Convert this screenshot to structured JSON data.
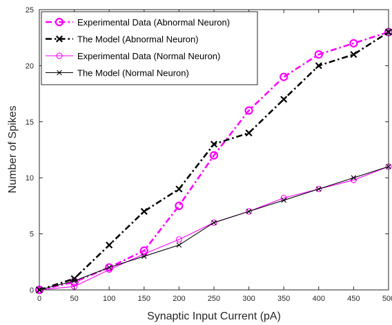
{
  "chart_data": {
    "type": "line",
    "xlabel": "Synaptic Input Current (pA)",
    "ylabel": "Number of Spikes",
    "xlim": [
      0,
      500
    ],
    "ylim": [
      0,
      25
    ],
    "x_ticks": [
      "0",
      "50",
      "100",
      "150",
      "200",
      "250",
      "300",
      "350",
      "400",
      "450",
      "500"
    ],
    "y_ticks": [
      "0",
      "5",
      "10",
      "15",
      "20",
      "25"
    ],
    "grid": false,
    "legend_position": "top-left",
    "x": [
      0,
      50,
      100,
      150,
      200,
      250,
      300,
      350,
      400,
      450,
      500
    ],
    "series": [
      {
        "name": "Experimental Data (Abnormal Neuron)",
        "values": [
          0,
          0.7,
          2,
          3.5,
          7.5,
          12,
          16,
          19,
          21,
          22,
          23
        ],
        "color": "#ff00ff",
        "line_style": "dash-dot",
        "marker": "circle",
        "weight": "thick"
      },
      {
        "name": "The Model (Abnormal Neuron)",
        "values": [
          0,
          1,
          4,
          7,
          9,
          13,
          14,
          17,
          20,
          21,
          23
        ],
        "color": "#000000",
        "line_style": "dash-dot",
        "marker": "x",
        "weight": "thick"
      },
      {
        "name": "Experimental Data (Normal Neuron)",
        "values": [
          0,
          0.3,
          1.8,
          3.2,
          4.5,
          6,
          7,
          8.2,
          9,
          9.8,
          11
        ],
        "color": "#ff00ff",
        "line_style": "solid",
        "marker": "circle",
        "weight": "thin"
      },
      {
        "name": "The Model (Normal Neuron)",
        "values": [
          0,
          0.8,
          2,
          3,
          4,
          6,
          7,
          8,
          9,
          10,
          11
        ],
        "color": "#000000",
        "line_style": "solid",
        "marker": "x",
        "weight": "thin"
      }
    ]
  }
}
